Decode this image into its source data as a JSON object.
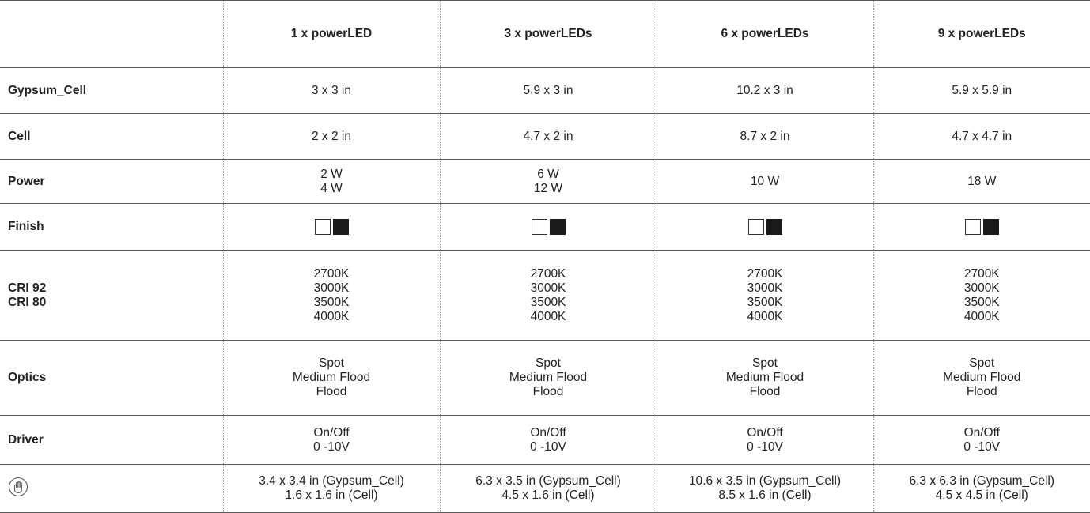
{
  "table": {
    "corner": "",
    "columns": [
      "1 x powerLED",
      "3 x powerLEDs",
      "6 x powerLEDs",
      "9 x powerLEDs"
    ],
    "gypsum_cell": {
      "label": "Gypsum_Cell",
      "values": [
        "3 x 3 in",
        "5.9 x 3 in",
        "10.2 x 3 in",
        "5.9 x 5.9 in"
      ]
    },
    "cell": {
      "label": "Cell",
      "values": [
        "2 x 2 in",
        "4.7 x 2 in",
        "8.7 x 2 in",
        "4.7 x 4.7 in"
      ]
    },
    "power": {
      "label": "Power",
      "values": [
        [
          "2 W",
          "4 W"
        ],
        [
          "6 W",
          "12 W"
        ],
        [
          "10 W"
        ],
        [
          "18 W"
        ]
      ]
    },
    "finish": {
      "label": "Finish",
      "colors": [
        "#ffffff",
        "#1a1a1a"
      ]
    },
    "cri": {
      "labels": [
        "CRI 92",
        "CRI 80"
      ],
      "values": [
        [
          "2700K",
          "3000K",
          "3500K",
          "4000K"
        ],
        [
          "2700K",
          "3000K",
          "3500K",
          "4000K"
        ],
        [
          "2700K",
          "3000K",
          "3500K",
          "4000K"
        ],
        [
          "2700K",
          "3000K",
          "3500K",
          "4000K"
        ]
      ]
    },
    "optics": {
      "label": "Optics",
      "values": [
        [
          "Spot",
          "Medium Flood",
          "Flood"
        ],
        [
          "Spot",
          "Medium Flood",
          "Flood"
        ],
        [
          "Spot",
          "Medium Flood",
          "Flood"
        ],
        [
          "Spot",
          "Medium Flood",
          "Flood"
        ]
      ]
    },
    "driver": {
      "label": "Driver",
      "values": [
        [
          "On/Off",
          "0 -10V"
        ],
        [
          "On/Off",
          "0 -10V"
        ],
        [
          "On/Off",
          "0 -10V"
        ],
        [
          "On/Off",
          "0 -10V"
        ]
      ]
    },
    "cutout": {
      "icon": "cutout-hand-icon",
      "values": [
        [
          "3.4 x 3.4 in (Gypsum_Cell)",
          "1.6 x 1.6 in (Cell)"
        ],
        [
          "6.3 x 3.5 in (Gypsum_Cell)",
          "4.5 x 1.6 in (Cell)"
        ],
        [
          "10.6 x 3.5 in (Gypsum_Cell)",
          "8.5 x 1.6 in (Cell)"
        ],
        [
          "6.3 x 6.3 in (Gypsum_Cell)",
          "4.5 x 4.5 in (Cell)"
        ]
      ]
    }
  }
}
